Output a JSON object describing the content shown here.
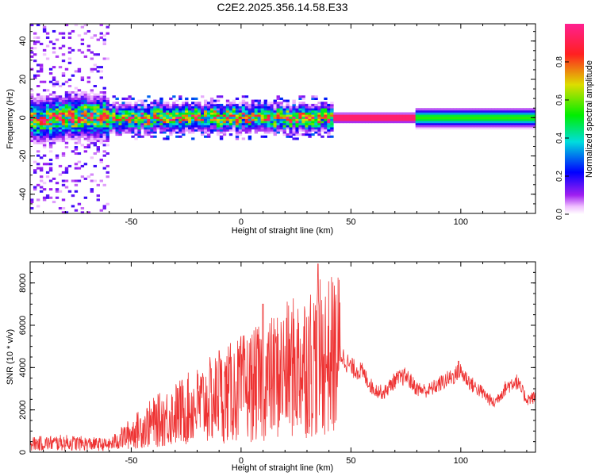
{
  "title": "C2E2.2025.356.14.58.E33",
  "chart_data": [
    {
      "type": "heatmap",
      "xlabel": "Height of straight line (km)",
      "ylabel": "Frequency (Hz)",
      "xlim": [
        -96,
        134
      ],
      "ylim": [
        -50,
        49
      ],
      "xticks": [
        -50,
        0,
        50,
        100
      ],
      "yticks": [
        -40,
        -20,
        0,
        20,
        40
      ],
      "colorbar": {
        "label": "Normalized spectral amplitude",
        "range": [
          0.0,
          1.0
        ],
        "ticks": [
          "0.0",
          "0.2",
          "0.4",
          "0.6",
          "0.8"
        ],
        "colormap": "rainbow (magenta-blue-cyan-green-yellow-red)"
      },
      "description_features": {
        "main_band_center_hz": 0,
        "sparse_broadband_region_km": [
          -96,
          -60
        ],
        "noisy_region_km": [
          -96,
          42
        ],
        "stable_narrowband_region_km": [
          42,
          134
        ]
      }
    },
    {
      "type": "line",
      "xlabel": "Height of straight line (km)",
      "ylabel": "SNR (10 * v/v)",
      "xlim": [
        -96,
        134
      ],
      "ylim": [
        0,
        9000
      ],
      "xticks": [
        -50,
        0,
        50,
        100
      ],
      "yticks": [
        0,
        2000,
        4000,
        6000,
        8000
      ],
      "color": "#ee3333",
      "envelope": {
        "x": [
          -96,
          -80,
          -70,
          -60,
          -50,
          -40,
          -30,
          -20,
          -10,
          0,
          10,
          20,
          30,
          35,
          40,
          45,
          50,
          55,
          60,
          65,
          70,
          75,
          80,
          85,
          90,
          95,
          100,
          105,
          110,
          115,
          120,
          125,
          130,
          134
        ],
        "y": [
          400,
          450,
          400,
          350,
          900,
          1400,
          1800,
          2200,
          2600,
          3000,
          3300,
          3800,
          4300,
          4400,
          4500,
          4700,
          4000,
          3800,
          3000,
          2800,
          3400,
          3600,
          3000,
          2900,
          3200,
          3500,
          3800,
          3200,
          2800,
          2300,
          3000,
          3400,
          2500,
          2600
        ]
      },
      "peaks": [
        {
          "x": 35,
          "y": 8900
        },
        {
          "x": 10,
          "y": 7000
        },
        {
          "x": -10,
          "y": 4800
        },
        {
          "x": 99,
          "y": 4300
        }
      ]
    }
  ]
}
